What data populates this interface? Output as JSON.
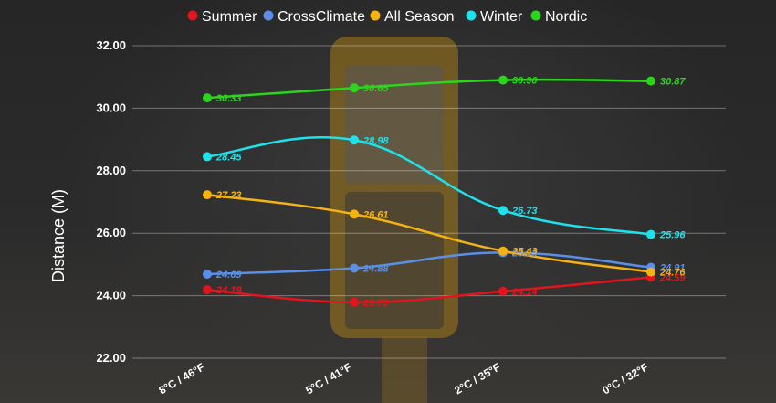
{
  "chart_data": {
    "type": "line",
    "ylabel": "Distance (M)",
    "xlabel": "",
    "ylim": [
      22,
      32
    ],
    "yticks": [
      "22.00",
      "24.00",
      "26.00",
      "28.00",
      "30.00",
      "32.00"
    ],
    "categories": [
      "8°C / 46°F",
      "5°C / 41°F",
      "2°C / 35°F",
      "0°C / 32°F"
    ],
    "legend_position": "top",
    "grid": true,
    "series": [
      {
        "name": "Summer",
        "color": "#e3141e",
        "values": [
          24.19,
          23.79,
          24.14,
          24.59
        ],
        "labels": [
          "24.19",
          "23.79",
          "24.14",
          "24.59"
        ]
      },
      {
        "name": "CrossClimate",
        "color": "#5b8ee6",
        "values": [
          24.69,
          24.88,
          25.38,
          24.91
        ],
        "labels": [
          "24.69",
          "24.88",
          "25.38",
          "24.91"
        ]
      },
      {
        "name": "All Season",
        "color": "#f5b312",
        "values": [
          27.23,
          26.61,
          25.43,
          24.76
        ],
        "labels": [
          "27.23",
          "26.61",
          "25.43",
          "24.76"
        ]
      },
      {
        "name": "Winter",
        "color": "#1de2ec",
        "values": [
          28.45,
          28.98,
          26.73,
          25.96
        ],
        "labels": [
          "28.45",
          "28.98",
          "26.73",
          "25.96"
        ]
      },
      {
        "name": "Nordic",
        "color": "#2bd51c",
        "values": [
          30.33,
          30.65,
          30.9,
          30.87
        ],
        "labels": [
          "30.33",
          "30.65",
          "30.90",
          "30.87"
        ]
      }
    ]
  }
}
